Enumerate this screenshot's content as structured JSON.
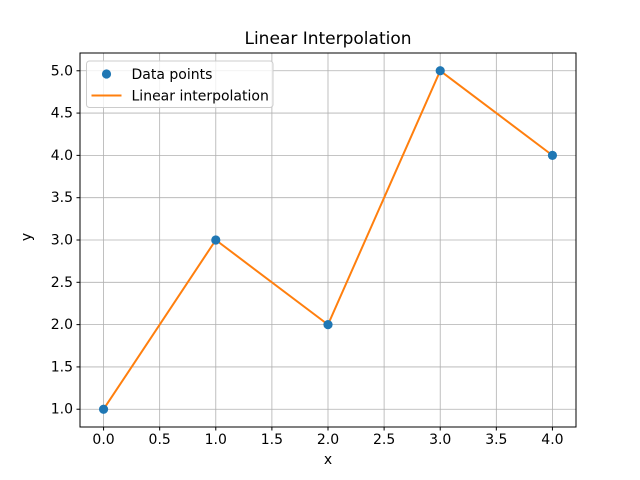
{
  "figure": {
    "background": "#ffffff"
  },
  "chart_data": {
    "type": "line",
    "title": "Linear Interpolation",
    "xlabel": "x",
    "ylabel": "y",
    "x": [
      0,
      1,
      2,
      3,
      4
    ],
    "series": [
      {
        "name": "Data points",
        "plot_type": "scatter",
        "color": "#1f77b4",
        "values": [
          1,
          3,
          2,
          5,
          4
        ]
      },
      {
        "name": "Linear interpolation",
        "plot_type": "line",
        "color": "#ff7f0e",
        "values": [
          1,
          3,
          2,
          5,
          4
        ]
      }
    ],
    "xlim": [
      -0.21,
      4.21
    ],
    "ylim": [
      0.79,
      5.21
    ],
    "xticks": [
      0.0,
      0.5,
      1.0,
      1.5,
      2.0,
      2.5,
      3.0,
      3.5,
      4.0
    ],
    "yticks": [
      1.0,
      1.5,
      2.0,
      2.5,
      3.0,
      3.5,
      4.0,
      4.5,
      5.0
    ],
    "tick_format_decimals": 1,
    "grid": true,
    "legend": {
      "position": "upper-left",
      "entries": [
        "Data points",
        "Linear interpolation"
      ]
    },
    "colors": {
      "grid": "#b0b0b0",
      "spine": "#000000",
      "text": "#000000",
      "legend_border": "#cccccc",
      "legend_bg": "rgba(255,255,255,0.8)"
    }
  }
}
